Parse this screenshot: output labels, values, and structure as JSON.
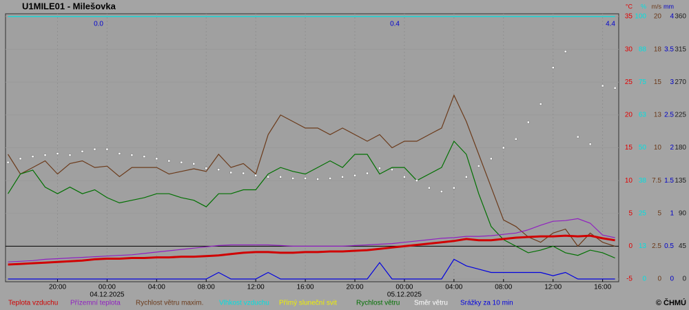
{
  "chart_data": {
    "type": "line",
    "title": "U1MILE01 - Milešovka",
    "credit": "© ČHMÚ",
    "top_labels": [
      "0.0",
      "0.4",
      "4.4"
    ],
    "x": [
      -8,
      -7,
      -6,
      -5,
      -4,
      -3,
      -2,
      -1,
      0,
      1,
      2,
      3,
      4,
      5,
      6,
      7,
      8,
      9,
      10,
      11,
      12,
      13,
      14,
      15,
      16,
      17,
      18,
      19,
      20,
      21,
      22,
      23,
      24,
      25,
      26,
      27,
      28,
      29,
      30,
      31,
      32,
      33,
      34,
      35,
      36,
      37,
      38,
      39,
      40,
      41
    ],
    "xlim": [
      -8.2,
      41.3
    ],
    "xticks": [
      {
        "value": -4,
        "label": "20:00"
      },
      {
        "value": 0,
        "label": "00:00"
      },
      {
        "value": 4,
        "label": "04:00"
      },
      {
        "value": 8,
        "label": "08:00"
      },
      {
        "value": 12,
        "label": "12:00"
      },
      {
        "value": 16,
        "label": "16:00"
      },
      {
        "value": 20,
        "label": "20:00"
      },
      {
        "value": 24,
        "label": "00:00"
      },
      {
        "value": 28,
        "label": "04:00"
      },
      {
        "value": 32,
        "label": "08:00"
      },
      {
        "value": 36,
        "label": "12:00"
      },
      {
        "value": 40,
        "label": "16:00"
      }
    ],
    "x_dates": [
      {
        "value": 0,
        "label": "04.12.2025"
      },
      {
        "value": 24,
        "label": "05.12.2025"
      }
    ],
    "grid": true,
    "axes": [
      {
        "unit": "°C",
        "color": "#e00000",
        "lim": [
          -5,
          35
        ],
        "ticks": [
          -5,
          0,
          5,
          10,
          15,
          20,
          25,
          30,
          35
        ]
      },
      {
        "unit": "%",
        "color": "#00e0e0",
        "lim": [
          0,
          100
        ],
        "ticks": [
          0,
          {
            "value": 12.5,
            "label": "13"
          },
          25,
          {
            "value": 37.5,
            "label": "38"
          },
          50,
          {
            "value": 62.5,
            "label": "63"
          },
          75,
          {
            "value": 87.5,
            "label": "88"
          },
          100
        ]
      },
      {
        "unit": "m/s",
        "color": "#6b3a1a",
        "lim": [
          0,
          20
        ],
        "ticks": [
          0,
          2.5,
          5,
          7.5,
          10,
          {
            "value": 12.5,
            "label": "13"
          },
          15,
          {
            "value": 17.5,
            "label": "18"
          },
          20
        ]
      },
      {
        "unit": "mm",
        "color": "#0000c8",
        "lim": [
          0,
          4
        ],
        "ticks": [
          0,
          0.5,
          1,
          1.5,
          2,
          2.5,
          3,
          3.5,
          4
        ]
      },
      {
        "color": "#202020",
        "lim": [
          0,
          360
        ],
        "ticks": [
          0,
          45,
          90,
          135,
          180,
          225,
          270,
          315,
          360
        ]
      }
    ],
    "series": [
      {
        "name": "Teplota vzduchu",
        "color": "#d00000",
        "axis": 0,
        "style": "thick",
        "values": [
          -2.8,
          -2.7,
          -2.6,
          -2.5,
          -2.4,
          -2.3,
          -2.2,
          -2.0,
          -1.9,
          -1.9,
          -1.8,
          -1.8,
          -1.7,
          -1.7,
          -1.6,
          -1.6,
          -1.5,
          -1.4,
          -1.2,
          -1.0,
          -0.9,
          -0.9,
          -1.0,
          -1.0,
          -0.9,
          -0.9,
          -0.8,
          -0.8,
          -0.7,
          -0.6,
          -0.4,
          -0.2,
          0.0,
          0.2,
          0.4,
          0.6,
          0.8,
          1.1,
          0.9,
          0.9,
          1.1,
          1.3,
          1.4,
          1.5,
          1.5,
          1.6,
          1.5,
          1.6,
          1.2,
          0.9
        ]
      },
      {
        "name": "Přízemní teplota",
        "color": "#9020c0",
        "axis": 0,
        "style": "line",
        "values": [
          -2.4,
          -2.3,
          -2.2,
          -2.0,
          -1.9,
          -1.8,
          -1.7,
          -1.6,
          -1.5,
          -1.4,
          -1.3,
          -1.1,
          -0.9,
          -0.7,
          -0.5,
          -0.3,
          -0.1,
          0.1,
          0.2,
          0.2,
          0.2,
          0.2,
          0.1,
          0.0,
          0.0,
          0.0,
          0.0,
          0.0,
          0.1,
          0.2,
          0.3,
          0.4,
          0.6,
          0.8,
          1.0,
          1.2,
          1.3,
          1.5,
          1.5,
          1.6,
          1.8,
          2.0,
          2.5,
          3.2,
          3.8,
          3.9,
          4.2,
          3.5,
          1.7,
          1.3
        ]
      },
      {
        "name": "Rychlost větru maxim.",
        "color": "#6b3a1a",
        "axis": 2,
        "style": "line",
        "values": [
          9.5,
          8.0,
          8.5,
          9.0,
          8.0,
          8.8,
          9.0,
          8.5,
          8.6,
          7.8,
          8.5,
          8.5,
          8.5,
          8.0,
          8.2,
          8.4,
          8.2,
          9.5,
          8.5,
          8.8,
          8.0,
          11.0,
          12.5,
          12.0,
          11.5,
          11.5,
          11.0,
          11.5,
          11.0,
          10.5,
          11.0,
          10.0,
          10.5,
          10.5,
          11.0,
          11.5,
          14.0,
          12.0,
          9.5,
          7.0,
          4.5,
          4.0,
          3.2,
          2.8,
          3.5,
          3.8,
          2.5,
          3.5,
          2.8,
          2.5
        ]
      },
      {
        "name": "Vlhkost vzduchu",
        "color": "#00e0e0",
        "axis": 1,
        "style": "line",
        "values": [
          100,
          100,
          100,
          100,
          100,
          100,
          100,
          100,
          100,
          100,
          100,
          100,
          100,
          100,
          100,
          100,
          100,
          100,
          100,
          100,
          100,
          100,
          100,
          100,
          100,
          100,
          100,
          100,
          100,
          100,
          100,
          100,
          100,
          100,
          100,
          100,
          100,
          100,
          100,
          100,
          100,
          100,
          100,
          100,
          100,
          100,
          100,
          100,
          100,
          100
        ]
      },
      {
        "name": "Přímý sluneční svit",
        "color": "#f0f000",
        "axis": 0,
        "style": "line",
        "values": [
          null,
          null,
          null,
          null,
          null,
          null,
          null,
          null,
          null,
          null,
          null,
          null,
          null,
          null,
          null,
          null,
          null,
          null,
          null,
          null,
          null,
          null,
          null,
          null,
          null,
          null,
          null,
          null,
          null,
          null,
          null,
          null,
          null,
          null,
          null,
          null,
          null,
          null,
          null,
          null,
          null,
          null,
          null,
          null,
          null,
          null,
          null,
          null,
          null,
          null
        ]
      },
      {
        "name": "Rychlost větru",
        "color": "#007000",
        "axis": 2,
        "style": "line",
        "values": [
          6.5,
          8.0,
          8.3,
          7.0,
          6.5,
          7.0,
          6.5,
          6.8,
          6.2,
          5.8,
          6.0,
          6.2,
          6.5,
          6.5,
          6.2,
          6.0,
          5.5,
          6.5,
          6.5,
          6.8,
          6.8,
          8.0,
          8.5,
          8.2,
          8.0,
          8.5,
          9.0,
          8.5,
          9.5,
          9.5,
          8.0,
          8.5,
          8.5,
          7.5,
          8.0,
          8.5,
          10.5,
          9.5,
          6.5,
          4.0,
          3.0,
          2.5,
          2.0,
          2.2,
          2.5,
          2.0,
          1.8,
          2.2,
          2.0,
          1.6
        ]
      },
      {
        "name": "Směr větru",
        "color": "#ffffff",
        "axis": 4,
        "style": "dots",
        "values": [
          160,
          165,
          168,
          170,
          172,
          170,
          175,
          178,
          178,
          172,
          170,
          168,
          165,
          162,
          160,
          158,
          152,
          150,
          146,
          145,
          142,
          140,
          140,
          138,
          138,
          137,
          138,
          140,
          142,
          145,
          152,
          150,
          140,
          135,
          125,
          120,
          125,
          140,
          155,
          165,
          180,
          192,
          215,
          240,
          290,
          312,
          195,
          185,
          265,
          262
        ]
      },
      {
        "name": "Srážky za 10 min",
        "color": "#0000e0",
        "axis": 3,
        "style": "line",
        "values": [
          0,
          0,
          0,
          0,
          0,
          0,
          0,
          0,
          0,
          0,
          0,
          0,
          0,
          0,
          0,
          0,
          0,
          0.1,
          0,
          0,
          0,
          0.1,
          0,
          0,
          0,
          0,
          0,
          0,
          0,
          0,
          0.25,
          0,
          0,
          0,
          0,
          0,
          0.3,
          0.2,
          0.15,
          0.1,
          0.1,
          0.1,
          0.1,
          0.1,
          0.05,
          0.1,
          0,
          0,
          0,
          0
        ]
      }
    ]
  }
}
